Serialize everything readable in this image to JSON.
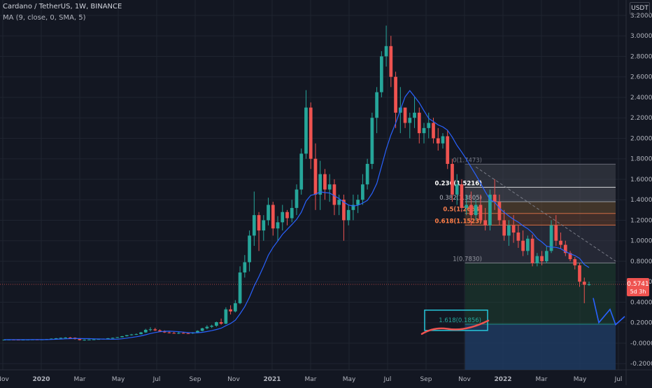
{
  "header": {
    "title": "Cardano / TetherUS, 1W, BINANCE",
    "indicator": "MA (9, close, 0, SMA, 5)",
    "unit": "USDT"
  },
  "price_tag": {
    "value": "0.5741",
    "countdown": "5d 3h"
  },
  "colors": {
    "background": "#131722",
    "up": "#26a69a",
    "down": "#ef5350",
    "ma": "#2962ff",
    "grid": "#1f2430"
  },
  "chart_data": {
    "type": "candlestick",
    "ylim": [
      -0.26,
      3.35
    ],
    "y_ticks": [
      "3.2000",
      "3.0000",
      "2.8000",
      "2.6000",
      "2.4000",
      "2.2000",
      "2.0000",
      "1.8000",
      "1.6000",
      "1.4000",
      "1.2000",
      "1.0000",
      "0.8000",
      "0.6000",
      "0.4000",
      "0.2000",
      "-0.0000",
      "-0.2000"
    ],
    "x_ticks": [
      "Nov",
      "2020",
      "Mar",
      "May",
      "Jul",
      "Sep",
      "Nov",
      "2021",
      "Mar",
      "May",
      "Jul",
      "Sep",
      "Nov",
      "2022",
      "Mar",
      "May",
      "Jul"
    ],
    "candles": [
      [
        0.033,
        0.036,
        0.03,
        0.034
      ],
      [
        0.034,
        0.037,
        0.031,
        0.035
      ],
      [
        0.035,
        0.038,
        0.033,
        0.034
      ],
      [
        0.034,
        0.036,
        0.032,
        0.033
      ],
      [
        0.033,
        0.035,
        0.031,
        0.034
      ],
      [
        0.034,
        0.036,
        0.032,
        0.035
      ],
      [
        0.035,
        0.038,
        0.033,
        0.036
      ],
      [
        0.036,
        0.039,
        0.034,
        0.035
      ],
      [
        0.035,
        0.037,
        0.033,
        0.036
      ],
      [
        0.036,
        0.041,
        0.034,
        0.04
      ],
      [
        0.04,
        0.046,
        0.038,
        0.044
      ],
      [
        0.044,
        0.05,
        0.042,
        0.048
      ],
      [
        0.048,
        0.054,
        0.045,
        0.052
      ],
      [
        0.052,
        0.058,
        0.048,
        0.055
      ],
      [
        0.055,
        0.06,
        0.05,
        0.053
      ],
      [
        0.053,
        0.056,
        0.035,
        0.04
      ],
      [
        0.04,
        0.045,
        0.027,
        0.03
      ],
      [
        0.03,
        0.036,
        0.025,
        0.033
      ],
      [
        0.033,
        0.038,
        0.031,
        0.035
      ],
      [
        0.035,
        0.039,
        0.033,
        0.037
      ],
      [
        0.037,
        0.042,
        0.035,
        0.04
      ],
      [
        0.04,
        0.045,
        0.038,
        0.043
      ],
      [
        0.043,
        0.05,
        0.041,
        0.048
      ],
      [
        0.048,
        0.055,
        0.046,
        0.052
      ],
      [
        0.052,
        0.06,
        0.05,
        0.058
      ],
      [
        0.058,
        0.07,
        0.056,
        0.068
      ],
      [
        0.068,
        0.08,
        0.065,
        0.078
      ],
      [
        0.078,
        0.09,
        0.074,
        0.085
      ],
      [
        0.085,
        0.095,
        0.08,
        0.088
      ],
      [
        0.088,
        0.11,
        0.085,
        0.105
      ],
      [
        0.105,
        0.14,
        0.1,
        0.13
      ],
      [
        0.13,
        0.155,
        0.115,
        0.135
      ],
      [
        0.135,
        0.15,
        0.118,
        0.125
      ],
      [
        0.125,
        0.135,
        0.11,
        0.115
      ],
      [
        0.115,
        0.125,
        0.1,
        0.105
      ],
      [
        0.105,
        0.115,
        0.095,
        0.1
      ],
      [
        0.1,
        0.11,
        0.092,
        0.098
      ],
      [
        0.098,
        0.108,
        0.09,
        0.1
      ],
      [
        0.1,
        0.11,
        0.093,
        0.097
      ],
      [
        0.097,
        0.105,
        0.09,
        0.095
      ],
      [
        0.095,
        0.108,
        0.09,
        0.104
      ],
      [
        0.104,
        0.125,
        0.1,
        0.12
      ],
      [
        0.12,
        0.15,
        0.115,
        0.145
      ],
      [
        0.145,
        0.175,
        0.135,
        0.16
      ],
      [
        0.16,
        0.18,
        0.148,
        0.17
      ],
      [
        0.17,
        0.21,
        0.16,
        0.205
      ],
      [
        0.205,
        0.24,
        0.18,
        0.19
      ],
      [
        0.19,
        0.35,
        0.185,
        0.33
      ],
      [
        0.33,
        0.37,
        0.28,
        0.31
      ],
      [
        0.31,
        0.42,
        0.3,
        0.39
      ],
      [
        0.39,
        0.75,
        0.38,
        0.69
      ],
      [
        0.69,
        0.86,
        0.64,
        0.79
      ],
      [
        0.79,
        1.1,
        0.7,
        1.05
      ],
      [
        1.05,
        1.48,
        0.95,
        1.25
      ],
      [
        1.25,
        1.28,
        0.9,
        1.1
      ],
      [
        1.1,
        1.25,
        1.0,
        1.2
      ],
      [
        1.2,
        1.42,
        1.15,
        1.35
      ],
      [
        1.35,
        1.38,
        1.05,
        1.12
      ],
      [
        1.12,
        1.24,
        1.0,
        1.18
      ],
      [
        1.18,
        1.35,
        1.1,
        1.28
      ],
      [
        1.28,
        1.3,
        1.15,
        1.22
      ],
      [
        1.22,
        1.4,
        1.18,
        1.32
      ],
      [
        1.32,
        1.55,
        1.25,
        1.5
      ],
      [
        1.5,
        1.9,
        1.45,
        1.85
      ],
      [
        1.85,
        2.47,
        1.8,
        2.3
      ],
      [
        2.3,
        2.35,
        1.7,
        1.8
      ],
      [
        1.8,
        1.95,
        1.3,
        1.45
      ],
      [
        1.45,
        1.78,
        1.3,
        1.65
      ],
      [
        1.65,
        1.7,
        1.4,
        1.5
      ],
      [
        1.5,
        1.65,
        1.38,
        1.55
      ],
      [
        1.55,
        1.6,
        1.25,
        1.35
      ],
      [
        1.35,
        1.45,
        1.25,
        1.4
      ],
      [
        1.4,
        1.45,
        1.0,
        1.2
      ],
      [
        1.2,
        1.35,
        1.15,
        1.3
      ],
      [
        1.3,
        1.45,
        1.2,
        1.35
      ],
      [
        1.35,
        1.45,
        1.27,
        1.4
      ],
      [
        1.4,
        1.65,
        1.35,
        1.55
      ],
      [
        1.55,
        1.8,
        1.5,
        1.75
      ],
      [
        1.75,
        2.25,
        1.7,
        2.2
      ],
      [
        2.2,
        2.5,
        2.05,
        2.45
      ],
      [
        2.45,
        2.85,
        2.4,
        2.8
      ],
      [
        2.8,
        3.1,
        2.7,
        2.9
      ],
      [
        2.9,
        3.0,
        2.5,
        2.6
      ],
      [
        2.6,
        2.65,
        2.1,
        2.25
      ],
      [
        2.25,
        2.5,
        2.05,
        2.3
      ],
      [
        2.3,
        2.3,
        2.1,
        2.15
      ],
      [
        2.15,
        2.25,
        2.0,
        2.2
      ],
      [
        2.2,
        2.4,
        2.1,
        2.25
      ],
      [
        2.25,
        2.3,
        1.95,
        2.05
      ],
      [
        2.05,
        2.15,
        1.95,
        2.1
      ],
      [
        2.1,
        2.25,
        2.0,
        2.15
      ],
      [
        2.15,
        2.2,
        1.95,
        2.0
      ],
      [
        2.0,
        2.1,
        1.88,
        1.95
      ],
      [
        1.95,
        2.05,
        1.9,
        2.02
      ],
      [
        2.02,
        2.08,
        1.7,
        1.75
      ],
      [
        1.75,
        1.8,
        1.38,
        1.45
      ],
      [
        1.45,
        1.65,
        1.35,
        1.55
      ],
      [
        1.55,
        1.6,
        1.28,
        1.32
      ],
      [
        1.32,
        1.45,
        1.25,
        1.35
      ],
      [
        1.35,
        1.48,
        1.15,
        1.25
      ],
      [
        1.25,
        1.4,
        1.2,
        1.35
      ],
      [
        1.35,
        1.45,
        1.18,
        1.2
      ],
      [
        1.2,
        1.32,
        1.1,
        1.15
      ],
      [
        1.15,
        1.5,
        1.1,
        1.45
      ],
      [
        1.45,
        1.6,
        1.3,
        1.38
      ],
      [
        1.38,
        1.45,
        1.15,
        1.2
      ],
      [
        1.2,
        1.3,
        1.0,
        1.05
      ],
      [
        1.05,
        1.2,
        0.95,
        1.15
      ],
      [
        1.15,
        1.25,
        0.98,
        1.08
      ],
      [
        1.08,
        1.15,
        0.93,
        1.0
      ],
      [
        1.0,
        1.1,
        0.85,
        0.9
      ],
      [
        0.9,
        1.05,
        0.86,
        1.02
      ],
      [
        1.02,
        1.06,
        0.75,
        0.78
      ],
      [
        0.78,
        0.88,
        0.75,
        0.85
      ],
      [
        0.85,
        0.9,
        0.76,
        0.8
      ],
      [
        0.8,
        0.95,
        0.78,
        0.9
      ],
      [
        0.9,
        1.2,
        0.88,
        1.15
      ],
      [
        1.15,
        1.25,
        0.95,
        1.0
      ],
      [
        1.0,
        1.08,
        0.92,
        0.96
      ],
      [
        0.96,
        1.0,
        0.85,
        0.88
      ],
      [
        0.88,
        0.9,
        0.8,
        0.82
      ],
      [
        0.82,
        0.84,
        0.72,
        0.76
      ],
      [
        0.76,
        0.78,
        0.55,
        0.6
      ],
      [
        0.6,
        0.64,
        0.39,
        0.57
      ],
      [
        0.57,
        0.6,
        0.56,
        0.574
      ]
    ],
    "ma_series": {
      "name": "MA 9",
      "values": [
        0.034,
        0.034,
        0.034,
        0.034,
        0.034,
        0.034,
        0.035,
        0.035,
        0.035,
        0.035,
        0.036,
        0.038,
        0.04,
        0.042,
        0.044,
        0.045,
        0.045,
        0.044,
        0.044,
        0.042,
        0.041,
        0.04,
        0.039,
        0.038,
        0.039,
        0.043,
        0.049,
        0.056,
        0.063,
        0.071,
        0.082,
        0.094,
        0.104,
        0.111,
        0.116,
        0.117,
        0.115,
        0.112,
        0.108,
        0.103,
        0.101,
        0.102,
        0.106,
        0.113,
        0.122,
        0.133,
        0.146,
        0.17,
        0.192,
        0.224,
        0.286,
        0.356,
        0.448,
        0.557,
        0.649,
        0.75,
        0.858,
        0.935,
        0.997,
        1.062,
        1.11,
        1.158,
        1.208,
        1.278,
        1.387,
        1.443,
        1.454,
        1.477,
        1.47,
        1.466,
        1.439,
        1.411,
        1.376,
        1.349,
        1.338,
        1.346,
        1.367,
        1.393,
        1.462,
        1.559,
        1.726,
        1.894,
        2.033,
        2.147,
        2.277,
        2.405,
        2.465,
        2.407,
        2.347,
        2.269,
        2.194,
        2.164,
        2.13,
        2.112,
        2.079,
        2.011,
        1.931,
        1.865,
        1.795,
        1.717,
        1.642,
        1.563,
        1.478,
        1.4,
        1.376,
        1.318,
        1.278,
        1.241,
        1.208,
        1.181,
        1.146,
        1.117,
        1.077,
        1.022,
        0.988,
        0.947,
        0.937,
        0.935,
        0.922,
        0.894,
        0.873,
        0.855,
        0.828,
        0.767,
        0.738
      ],
      "color": "#2962ff"
    },
    "fibonacci": [
      {
        "ratio": "0",
        "value": "1.7473",
        "level": 1.7473,
        "label": "0(1.7473)",
        "color": "#787b86"
      },
      {
        "ratio": "0.236",
        "value": "1.5216",
        "level": 1.5216,
        "label": "0.236(1.5216)",
        "color": "#ffffff"
      },
      {
        "ratio": "0.382",
        "value": "1.3805",
        "level": 1.3805,
        "label": "0.382(1.3805)",
        "color": "#b2b5be"
      },
      {
        "ratio": "0.5",
        "value": "1.2664",
        "level": 1.2664,
        "label": "0.5(1.2664)",
        "color": "#f57c4c"
      },
      {
        "ratio": "0.618",
        "value": "1.1523",
        "level": 1.1523,
        "label": "0.618(1.1523)",
        "color": "#ff7e47"
      },
      {
        "ratio": "1",
        "value": "0.7830",
        "level": 0.783,
        "label": "1(0.7830)",
        "color": "#9598a1"
      },
      {
        "ratio": "1.618",
        "value": "0.1856",
        "level": 0.1856,
        "label": "1.618(0.1856)",
        "color": "#26a69a"
      }
    ],
    "projection": [
      [
        0.44,
        0.35
      ],
      [
        0.2,
        0.29
      ],
      [
        0.34,
        0.42
      ],
      [
        0.18,
        0.2
      ],
      [
        0.26,
        0.2
      ]
    ]
  }
}
